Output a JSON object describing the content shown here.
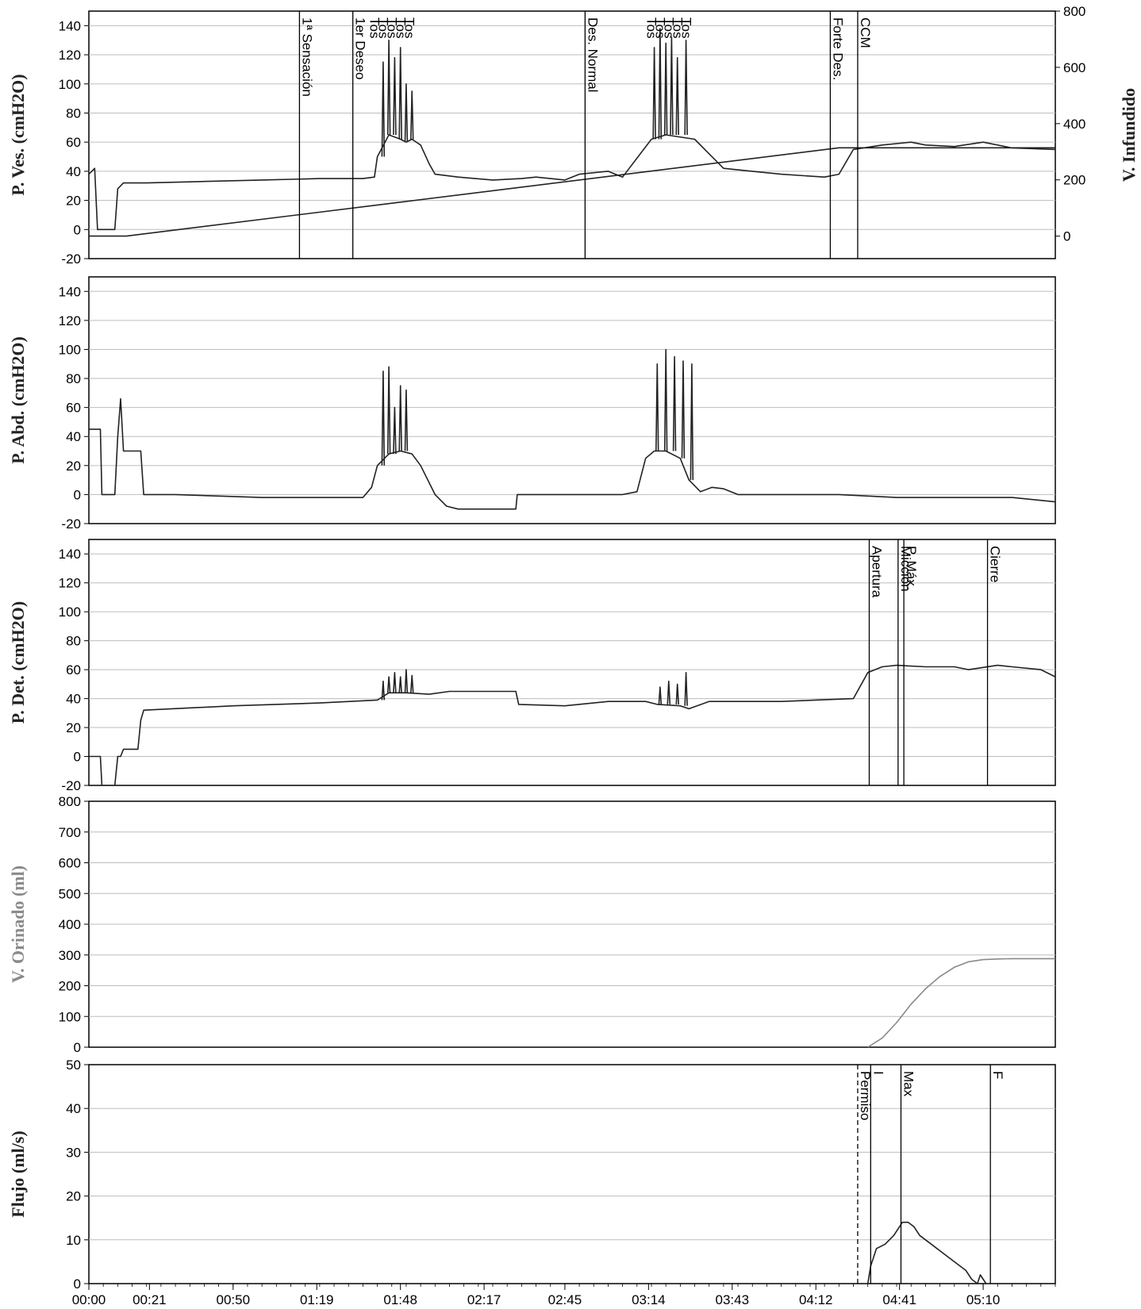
{
  "colors": {
    "trace": "#222222",
    "orinado": "#8a8a8a",
    "grid": "#bdbdbd",
    "background": "#ffffff"
  },
  "chart_data": {
    "type": "line",
    "time_axis": {
      "unit": "mm:ss",
      "range_s": [
        0,
        335
      ],
      "ticks": [
        "00:00",
        "00:21",
        "00:50",
        "01:19",
        "01:48",
        "02:17",
        "02:45",
        "03:14",
        "03:43",
        "04:12",
        "04:41",
        "05:10"
      ],
      "tick_seconds": [
        0,
        21,
        50,
        79,
        108,
        137,
        165,
        194,
        223,
        252,
        281,
        310
      ]
    },
    "panels": [
      {
        "id": "pves",
        "ylabel": "P. Ves. (cmH2O)",
        "ylim": [
          -20,
          150
        ],
        "ytick_labels": [
          "140",
          "120",
          "100",
          "80",
          "60",
          "40",
          "20",
          "0",
          "-20"
        ],
        "grid": true,
        "secondary_axis": {
          "label": "V. Infundido",
          "ylim": [
            -80,
            800
          ],
          "tick_labels": [
            "800",
            "600",
            "400",
            "200",
            "0"
          ]
        },
        "series": [
          {
            "name": "P. Ves.",
            "x": [
              0,
              2,
              3,
              9,
              10,
              12,
              20,
              40,
              60,
              80,
              95,
              99,
              100,
              104,
              108,
              110,
              112,
              115,
              118,
              120,
              128,
              140,
              150,
              155,
              165,
              170,
              180,
              185,
              195,
              200,
              210,
              220,
              230,
              240,
              255,
              260,
              265,
              275,
              285,
              290,
              300,
              310,
              320,
              335
            ],
            "y": [
              38,
              42,
              0,
              0,
              28,
              32,
              32,
              33,
              34,
              35,
              35,
              36,
              50,
              65,
              62,
              60,
              62,
              58,
              45,
              38,
              36,
              34,
              35,
              36,
              34,
              38,
              40,
              36,
              62,
              65,
              62,
              42,
              40,
              38,
              36,
              38,
              55,
              58,
              60,
              58,
              57,
              60,
              56,
              55
            ]
          },
          {
            "name": "V. Infundido",
            "axis": "secondary",
            "x": [
              0,
              13,
              260,
              335
            ],
            "y": [
              0,
              0,
              314,
              314
            ]
          }
        ],
        "spikes": [
          {
            "x": [
              102,
              104,
              106,
              108,
              110,
              112
            ],
            "y": [
              115,
              130,
              118,
              125,
              100,
              95
            ]
          },
          {
            "x": [
              196,
              198,
              200,
              202,
              204,
              207
            ],
            "y": [
              125,
              138,
              128,
              132,
              118,
              130
            ]
          }
        ],
        "events": [
          {
            "t": 73,
            "label": "1ª Sensación"
          },
          {
            "t": 91.5,
            "label": "1er Deseo"
          },
          {
            "t": 172,
            "label": "Des. Normal"
          },
          {
            "t": 257,
            "label": "Forte Des."
          },
          {
            "t": 266.5,
            "label": "CCM"
          }
        ],
        "tos_markers": [
          {
            "t": 97,
            "label": "Tos"
          },
          {
            "t": 100,
            "label": "Tos"
          },
          {
            "t": 103,
            "label": "Tos"
          },
          {
            "t": 106,
            "label": "Tos"
          },
          {
            "t": 109,
            "label": "Tos"
          },
          {
            "t": 193,
            "label": "Tos"
          },
          {
            "t": 196,
            "label": "Tos"
          },
          {
            "t": 199,
            "label": "Tos"
          },
          {
            "t": 202,
            "label": "Tos"
          },
          {
            "t": 205,
            "label": "Tos"
          }
        ]
      },
      {
        "id": "pabd",
        "ylabel": "P. Abd. (cmH2O)",
        "ylim": [
          -20,
          150
        ],
        "ytick_labels": [
          "140",
          "120",
          "100",
          "80",
          "60",
          "40",
          "20",
          "0",
          "-20"
        ],
        "grid": true,
        "series": [
          {
            "name": "P. Abd.",
            "x": [
              0,
              4,
              4.5,
              9,
              10,
              11,
              12,
              18,
              19,
              30,
              60,
              95,
              98,
              100,
              104,
              108,
              112,
              115,
              120,
              124,
              128,
              135,
              148,
              148.5,
              170,
              185,
              190,
              193,
              196,
              200,
              205,
              208,
              212,
              216,
              220,
              225,
              240,
              260,
              280,
              300,
              320,
              335
            ],
            "y": [
              45,
              45,
              0,
              0,
              40,
              66,
              30,
              30,
              0,
              0,
              -2,
              -2,
              5,
              20,
              28,
              30,
              28,
              20,
              0,
              -8,
              -10,
              -10,
              -10,
              0,
              0,
              0,
              2,
              25,
              30,
              30,
              25,
              10,
              2,
              5,
              4,
              0,
              0,
              0,
              -2,
              -2,
              -2,
              -5
            ]
          }
        ],
        "spikes": [
          {
            "x": [
              102,
              104,
              106,
              108,
              110
            ],
            "y": [
              85,
              88,
              60,
              75,
              72
            ]
          },
          {
            "x": [
              197,
              200,
              203,
              206,
              209
            ],
            "y": [
              90,
              100,
              95,
              92,
              90
            ]
          }
        ]
      },
      {
        "id": "pdet",
        "ylabel": "P. Det. (cmH2O)",
        "ylim": [
          -20,
          150
        ],
        "ytick_labels": [
          "140",
          "120",
          "100",
          "80",
          "60",
          "40",
          "20",
          "0",
          "-20"
        ],
        "grid": true,
        "series": [
          {
            "name": "P. Det.",
            "x": [
              0,
              4,
              4.5,
              9,
              10,
              11,
              12,
              17,
              18,
              19,
              50,
              80,
              100,
              104,
              110,
              118,
              125,
              148,
              149,
              165,
              180,
              193,
              197,
              205,
              208,
              215,
              240,
              265,
              270,
              275,
              280,
              290,
              300,
              305,
              315,
              320,
              330,
              335
            ],
            "y": [
              0,
              0,
              -20,
              -20,
              0,
              0,
              5,
              5,
              25,
              32,
              35,
              37,
              39,
              44,
              44,
              43,
              45,
              45,
              36,
              35,
              38,
              38,
              36,
              35,
              33,
              38,
              38,
              40,
              58,
              62,
              63,
              62,
              62,
              60,
              63,
              62,
              60,
              55
            ]
          }
        ],
        "spikes": [
          {
            "x": [
              102,
              104,
              106,
              108,
              110,
              112
            ],
            "y": [
              52,
              55,
              58,
              55,
              60,
              56
            ]
          },
          {
            "x": [
              198,
              201,
              204,
              207
            ],
            "y": [
              48,
              52,
              50,
              58
            ]
          }
        ],
        "events": [
          {
            "t": 270.5,
            "label": "Apertura"
          },
          {
            "t": 280.5,
            "label": "Micción"
          },
          {
            "t": 282.5,
            "label": "P. Máx."
          },
          {
            "t": 311.5,
            "label": "Cierre"
          }
        ]
      },
      {
        "id": "vorin",
        "ylabel": "V. Orinado (ml)",
        "ylim": [
          0,
          800
        ],
        "ytick_labels": [
          "800",
          "700",
          "600",
          "500",
          "400",
          "300",
          "200",
          "100",
          "0"
        ],
        "grid": true,
        "series": [
          {
            "name": "V. Orinado",
            "x": [
              270,
              275,
              280,
              285,
              290,
              295,
              300,
              305,
              310,
              315,
              320,
              335
            ],
            "y": [
              0,
              30,
              80,
              140,
              190,
              230,
              260,
              278,
              285,
              287,
              288,
              288
            ]
          }
        ]
      },
      {
        "id": "flujo",
        "ylabel": "Flujo (ml/s)",
        "ylim": [
          0,
          50
        ],
        "ytick_labels": [
          "50",
          "40",
          "30",
          "20",
          "10",
          "0"
        ],
        "grid": true,
        "series": [
          {
            "name": "Flujo",
            "x": [
              270,
              271,
              273,
              276,
              279,
              281,
              282,
              284,
              286,
              288,
              292,
              296,
              300,
              304,
              306,
              308,
              309,
              310,
              311
            ],
            "y": [
              0,
              4,
              8,
              9,
              11,
              13,
              14,
              14,
              13,
              11,
              9,
              7,
              5,
              3,
              1,
              0,
              2,
              1,
              0
            ]
          }
        ],
        "events": [
          {
            "t": 266.5,
            "label": "Permiso",
            "style": "dashed"
          },
          {
            "t": 271,
            "label": "I"
          },
          {
            "t": 281.5,
            "label": "Max"
          },
          {
            "t": 312.5,
            "label": "F"
          }
        ]
      }
    ]
  }
}
